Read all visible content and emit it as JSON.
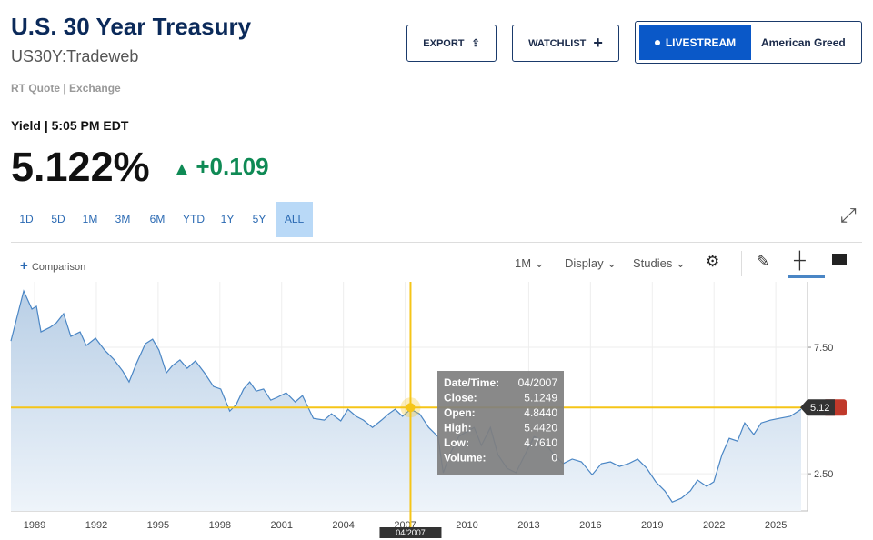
{
  "header": {
    "title": "U.S. 30 Year Treasury",
    "symbol": "US30Y:Tradeweb",
    "quote_source": "RT Quote | Exchange"
  },
  "buttons": {
    "export": "EXPORT",
    "watchlist": "WATCHLIST",
    "livestream": "LIVESTREAM",
    "show": "American Greed"
  },
  "quote": {
    "label": "Yield | 5:05 PM EDT",
    "price": "5.122%",
    "change": "+0.109"
  },
  "ranges": [
    "1D",
    "5D",
    "1M",
    "3M",
    "6M",
    "YTD",
    "1Y",
    "5Y",
    "ALL"
  ],
  "active_range_index": 8,
  "toolbar": {
    "comparison": "Comparison",
    "interval": "1M",
    "display": "Display",
    "studies": "Studies"
  },
  "chart_data": {
    "type": "line",
    "color": "#4a86c5",
    "x": [
      1987.85,
      1988.47,
      1988.87,
      1989.09,
      1989.31,
      1989.75,
      1990.06,
      1990.41,
      1990.76,
      1991.21,
      1991.51,
      1991.96,
      1992.4,
      1992.84,
      1993.28,
      1993.59,
      1993.94,
      1994.38,
      1994.73,
      1995.04,
      1995.4,
      1995.7,
      1996.06,
      1996.41,
      1996.81,
      1997.25,
      1997.69,
      1998.04,
      1998.48,
      1998.79,
      1999.15,
      1999.45,
      1999.76,
      2000.12,
      2000.47,
      2000.78,
      2001.22,
      2001.66,
      2002.01,
      2002.54,
      2003.07,
      2003.42,
      2003.87,
      2004.22,
      2004.62,
      2004.97,
      2005.41,
      2005.85,
      2006.2,
      2006.51,
      2006.87,
      2007.26,
      2007.7,
      2008.14,
      2008.59,
      2008.85,
      2009.16,
      2009.6,
      2009.95,
      2010.35,
      2010.7,
      2011.14,
      2011.5,
      2011.94,
      2012.38,
      2012.82,
      2013.26,
      2013.7,
      2014.23,
      2014.67,
      2015.11,
      2015.56,
      2016.08,
      2016.53,
      2016.97,
      2017.41,
      2017.85,
      2018.29,
      2018.73,
      2019.17,
      2019.61,
      2019.97,
      2020.41,
      2020.85,
      2021.2,
      2021.64,
      2021.99,
      2022.39,
      2022.74,
      2023.14,
      2023.49,
      2023.93,
      2024.29,
      2024.73,
      2025.17,
      2025.7,
      2026.23
    ],
    "values": [
      7.75,
      9.73,
      9.01,
      9.12,
      8.11,
      8.29,
      8.47,
      8.83,
      7.93,
      8.11,
      7.57,
      7.86,
      7.39,
      7.03,
      6.56,
      6.13,
      6.85,
      7.64,
      7.82,
      7.39,
      6.49,
      6.78,
      7.0,
      6.67,
      6.96,
      6.49,
      5.95,
      5.85,
      4.98,
      5.23,
      5.85,
      6.13,
      5.77,
      5.85,
      5.41,
      5.52,
      5.7,
      5.34,
      5.59,
      4.69,
      4.62,
      4.87,
      4.59,
      5.05,
      4.77,
      4.62,
      4.33,
      4.62,
      4.87,
      5.05,
      4.77,
      5.05,
      4.87,
      4.33,
      3.97,
      2.54,
      3.26,
      3.97,
      4.15,
      4.33,
      3.62,
      4.33,
      3.26,
      2.72,
      2.54,
      3.26,
      3.97,
      3.79,
      3.26,
      2.9,
      3.08,
      2.97,
      2.46,
      2.9,
      2.97,
      2.79,
      2.9,
      3.08,
      2.72,
      2.18,
      1.82,
      1.38,
      1.53,
      1.82,
      2.25,
      2.0,
      2.18,
      3.26,
      3.9,
      3.79,
      4.51,
      4.05,
      4.51,
      4.62,
      4.69,
      4.77,
      5.05
    ],
    "xlim": [
      1987.85,
      2026.54
    ],
    "xticks": [
      1989,
      1992,
      1995,
      1998,
      2001,
      2004,
      2007,
      2010,
      2013,
      2016,
      2019,
      2022,
      2025
    ],
    "ylim": [
      1.03,
      10.09
    ],
    "yticks": [
      {
        "value": 2.5,
        "label": "2.50"
      },
      {
        "value": 7.5,
        "label": "7.50"
      }
    ],
    "grid": true,
    "crosshair": {
      "x": 2007.26,
      "x_label": "04/2007",
      "y": 5.12
    },
    "tooltip": {
      "rows": [
        [
          "Date/Time:",
          "04/2007"
        ],
        [
          "Close:",
          "5.1249"
        ],
        [
          "Open:",
          "4.8440"
        ],
        [
          "High:",
          "5.4420"
        ],
        [
          "Low:",
          "4.7610"
        ],
        [
          "Volume:",
          "0"
        ]
      ]
    }
  }
}
